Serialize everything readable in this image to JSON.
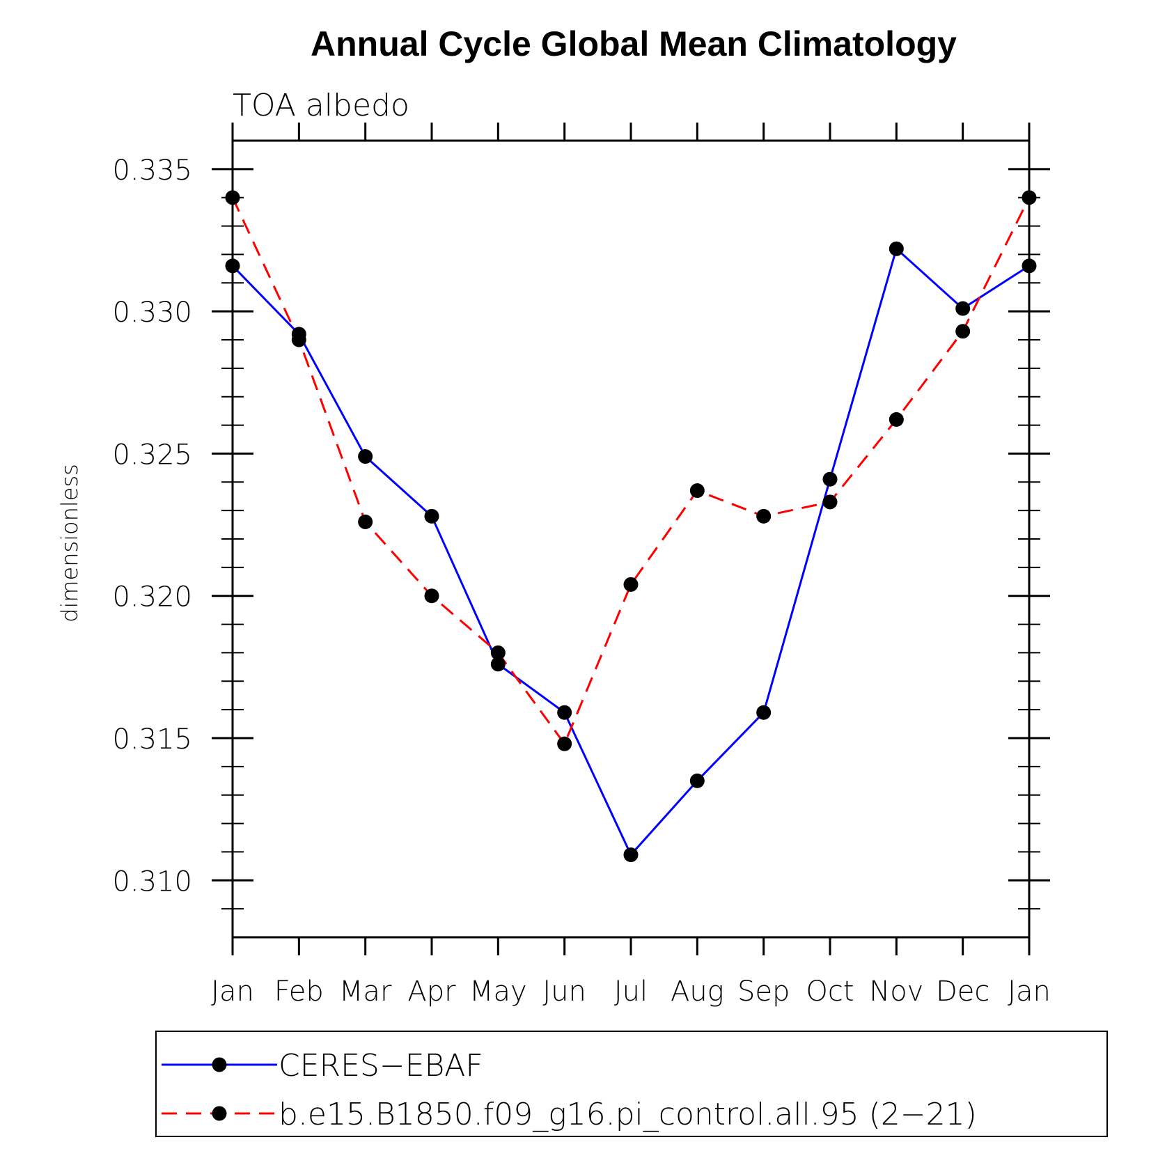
{
  "chart_data": {
    "type": "line",
    "title": "Annual Cycle Global Mean Climatology",
    "subtitle": "TOA albedo",
    "ylabel": "dimensionless",
    "xlabel": "",
    "categories": [
      "Jan",
      "Feb",
      "Mar",
      "Apr",
      "May",
      "Jun",
      "Jul",
      "Aug",
      "Sep",
      "Oct",
      "Nov",
      "Dec",
      "Jan"
    ],
    "ylim": [
      0.308,
      0.336
    ],
    "yticks": [
      "0.310",
      "0.315",
      "0.320",
      "0.325",
      "0.330",
      "0.335"
    ],
    "ytick_values": [
      0.31,
      0.315,
      0.32,
      0.325,
      0.33,
      0.335
    ],
    "grid": false,
    "legend_position": "bottom",
    "series": [
      {
        "name": "CERES−EBAF",
        "color": "#0000ff",
        "line_style": "solid",
        "marker": "filled-circle",
        "values": [
          0.3316,
          0.3292,
          0.3249,
          0.3228,
          0.3176,
          0.3159,
          0.3109,
          0.3135,
          0.3159,
          0.3241,
          0.3322,
          0.3301,
          0.3316
        ]
      },
      {
        "name": "b.e15.B1850.f09_g16.pi_control.all.95 (2−21)",
        "color": "#ff0000",
        "line_style": "dashed",
        "marker": "filled-circle",
        "values": [
          0.334,
          0.329,
          0.3226,
          0.32,
          0.318,
          0.3148,
          0.3204,
          0.3237,
          0.3228,
          0.3233,
          0.3262,
          0.3293,
          0.334
        ]
      }
    ]
  }
}
